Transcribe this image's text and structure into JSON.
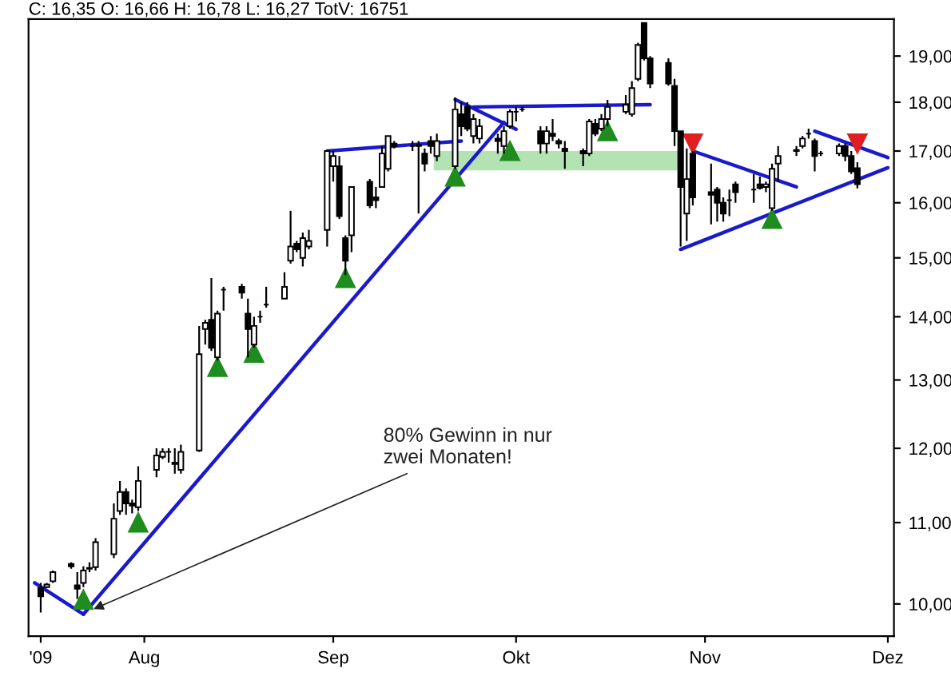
{
  "chart_data": {
    "type": "candlestick",
    "title": "C: 16,35 O: 16,66 H: 16,78 L: 16,27 TotV: 16751",
    "color": "#000000",
    "log": true,
    "x": [
      "2009-07-15",
      "2009-07-16",
      "2009-07-17",
      "2009-07-20",
      "2009-07-21",
      "2009-07-22",
      "2009-07-23",
      "2009-07-24",
      "2009-07-27",
      "2009-07-28",
      "2009-07-29",
      "2009-07-30",
      "2009-07-31",
      "2009-08-03",
      "2009-08-04",
      "2009-08-05",
      "2009-08-06",
      "2009-08-07",
      "2009-08-10",
      "2009-08-11",
      "2009-08-12",
      "2009-08-13",
      "2009-08-14",
      "2009-08-17",
      "2009-08-18",
      "2009-08-19",
      "2009-08-20",
      "2009-08-21",
      "2009-08-24",
      "2009-08-25",
      "2009-08-26",
      "2009-08-27",
      "2009-08-28",
      "2009-08-31",
      "2009-09-01",
      "2009-09-02",
      "2009-09-03",
      "2009-09-04",
      "2009-09-07",
      "2009-09-08",
      "2009-09-09",
      "2009-09-10",
      "2009-09-11",
      "2009-09-14",
      "2009-09-15",
      "2009-09-16",
      "2009-09-17",
      "2009-09-18",
      "2009-09-21",
      "2009-09-22",
      "2009-09-23",
      "2009-09-24",
      "2009-09-25",
      "2009-09-28",
      "2009-09-29",
      "2009-09-30",
      "2009-10-01",
      "2009-10-02",
      "2009-10-05",
      "2009-10-06",
      "2009-10-07",
      "2009-10-08",
      "2009-10-09",
      "2009-10-12",
      "2009-10-13",
      "2009-10-14",
      "2009-10-15",
      "2009-10-16",
      "2009-10-19",
      "2009-10-20",
      "2009-10-21",
      "2009-10-22",
      "2009-10-23",
      "2009-10-26",
      "2009-10-27",
      "2009-10-28",
      "2009-10-29",
      "2009-10-30",
      "2009-11-02",
      "2009-11-03",
      "2009-11-04",
      "2009-11-05",
      "2009-11-06",
      "2009-11-09",
      "2009-11-10",
      "2009-11-11",
      "2009-11-12",
      "2009-11-13",
      "2009-11-16",
      "2009-11-17",
      "2009-11-18",
      "2009-11-19",
      "2009-11-20",
      "2009-11-23",
      "2009-11-24",
      "2009-11-25",
      "2009-11-26"
    ],
    "ohlc": [
      [
        10.19,
        10.25,
        9.9,
        10.09
      ],
      [
        10.2,
        10.25,
        10.19,
        10.23
      ],
      [
        10.27,
        10.4,
        10.25,
        10.38
      ],
      [
        10.48,
        10.5,
        10.42,
        10.45
      ],
      [
        10.22,
        10.38,
        10.06,
        10.18
      ],
      [
        10.25,
        10.45,
        10.2,
        10.4
      ],
      [
        10.42,
        10.5,
        10.38,
        10.43
      ],
      [
        10.44,
        10.8,
        10.4,
        10.75
      ],
      [
        10.6,
        11.25,
        10.55,
        11.05
      ],
      [
        11.15,
        11.55,
        11.1,
        11.4
      ],
      [
        11.4,
        11.45,
        11.1,
        11.25
      ],
      [
        11.25,
        11.3,
        11.12,
        11.22
      ],
      [
        11.2,
        11.75,
        11.15,
        11.55
      ],
      [
        11.7,
        12.0,
        11.6,
        11.9
      ],
      [
        11.88,
        12.0,
        11.85,
        11.95
      ],
      [
        11.95,
        12.0,
        11.8,
        11.95
      ],
      [
        11.8,
        12.0,
        11.65,
        11.78
      ],
      [
        11.7,
        12.05,
        11.65,
        11.95
      ],
      [
        11.97,
        13.85,
        11.95,
        13.4
      ],
      [
        13.8,
        13.95,
        13.55,
        13.9
      ],
      [
        13.95,
        14.65,
        13.45,
        13.5
      ],
      [
        13.35,
        14.1,
        13.3,
        14.05
      ],
      [
        14.45,
        14.5,
        14.1,
        14.45
      ],
      [
        14.5,
        14.55,
        14.3,
        14.4
      ],
      [
        14.05,
        14.3,
        13.35,
        13.8
      ],
      [
        13.55,
        14.0,
        13.5,
        13.85
      ],
      [
        14.0,
        14.1,
        13.9,
        14.0
      ],
      [
        14.2,
        14.5,
        14.15,
        14.2
      ],
      [
        14.3,
        14.75,
        14.3,
        14.5
      ],
      [
        14.95,
        15.85,
        14.9,
        15.2
      ],
      [
        15.25,
        15.3,
        15.1,
        15.15
      ],
      [
        15.0,
        15.45,
        14.85,
        15.35
      ],
      [
        15.2,
        15.5,
        15.15,
        15.3
      ],
      [
        15.5,
        17.0,
        15.2,
        17.0
      ],
      [
        16.7,
        17.0,
        16.4,
        16.9
      ],
      [
        16.7,
        16.9,
        15.7,
        15.75
      ],
      [
        15.35,
        15.4,
        14.7,
        14.95
      ],
      [
        15.4,
        16.3,
        15.1,
        16.3
      ],
      [
        16.4,
        16.45,
        15.9,
        15.95
      ],
      [
        16.1,
        16.3,
        15.9,
        16.05
      ],
      [
        16.3,
        17.1,
        16.3,
        16.95
      ],
      [
        16.65,
        17.3,
        16.6,
        17.3
      ],
      [
        17.15,
        17.2,
        17.05,
        17.1
      ],
      [
        17.1,
        17.2,
        17.0,
        17.1
      ],
      [
        17.1,
        17.2,
        15.8,
        17.12
      ],
      [
        16.95,
        17.05,
        16.6,
        16.75
      ],
      [
        17.2,
        17.3,
        16.95,
        17.1
      ],
      [
        16.9,
        17.35,
        16.8,
        17.2
      ],
      [
        16.7,
        18.1,
        16.65,
        17.85
      ],
      [
        17.75,
        18.0,
        17.3,
        17.5
      ],
      [
        17.9,
        18.0,
        17.4,
        17.45
      ],
      [
        17.3,
        17.75,
        17.15,
        17.65
      ],
      [
        17.25,
        17.65,
        17.15,
        17.5
      ],
      [
        17.25,
        17.35,
        16.95,
        17.2
      ],
      [
        17.1,
        17.5,
        16.95,
        17.4
      ],
      [
        17.5,
        17.85,
        17.45,
        17.8
      ],
      [
        17.8,
        17.9,
        17.6,
        17.8
      ],
      [
        17.85,
        17.9,
        17.8,
        17.85
      ],
      [
        17.4,
        17.5,
        16.95,
        17.15
      ],
      [
        17.15,
        17.5,
        16.95,
        17.4
      ],
      [
        17.35,
        17.65,
        17.2,
        17.3
      ],
      [
        17.2,
        17.25,
        17.05,
        17.15
      ],
      [
        17.05,
        17.2,
        16.65,
        17.0
      ],
      [
        17.0,
        17.05,
        16.7,
        16.95
      ],
      [
        16.95,
        17.65,
        16.9,
        17.6
      ],
      [
        17.55,
        17.65,
        17.3,
        17.35
      ],
      [
        17.45,
        17.75,
        17.4,
        17.65
      ],
      [
        17.65,
        18.05,
        17.5,
        17.9
      ],
      [
        17.8,
        18.15,
        17.75,
        17.95
      ],
      [
        17.75,
        18.45,
        17.7,
        18.3
      ],
      [
        18.5,
        19.3,
        18.45,
        19.25
      ],
      [
        19.75,
        19.75,
        18.9,
        18.95
      ],
      [
        18.95,
        19.0,
        18.3,
        18.4
      ],
      [
        18.85,
        18.95,
        18.35,
        18.4
      ],
      [
        18.35,
        18.5,
        17.1,
        17.4
      ],
      [
        17.4,
        17.4,
        15.2,
        16.3
      ],
      [
        15.8,
        17.05,
        15.3,
        16.45
      ],
      [
        16.95,
        17.0,
        15.95,
        16.1
      ],
      [
        16.2,
        16.75,
        15.6,
        16.15
      ],
      [
        16.25,
        16.3,
        15.65,
        16.0
      ],
      [
        16.0,
        16.1,
        15.65,
        15.8
      ],
      [
        16.05,
        16.25,
        15.75,
        16.05
      ],
      [
        16.35,
        16.4,
        16.0,
        16.2
      ],
      [
        16.25,
        16.55,
        16.0,
        16.25
      ],
      [
        16.35,
        16.5,
        16.25,
        16.28
      ],
      [
        16.3,
        16.4,
        16.2,
        16.35
      ],
      [
        15.9,
        16.75,
        15.85,
        16.65
      ],
      [
        16.75,
        17.1,
        16.4,
        16.9
      ],
      [
        17.0,
        17.1,
        16.9,
        17.02
      ],
      [
        17.1,
        17.3,
        17.05,
        17.25
      ],
      [
        17.35,
        17.45,
        17.25,
        17.35
      ],
      [
        17.2,
        17.25,
        16.6,
        16.9
      ],
      [
        16.95,
        17.0,
        16.9,
        16.95
      ],
      [
        16.95,
        17.15,
        16.9,
        17.1
      ],
      [
        17.1,
        17.15,
        16.8,
        16.9
      ],
      [
        16.9,
        17.0,
        16.55,
        16.6
      ],
      [
        16.66,
        16.78,
        16.27,
        16.35
      ]
    ],
    "series": [
      {
        "type": "bar",
        "color": "#b3e3b3",
        "x": [
          "2009-10-08"
        ],
        "base": [
          16.62
        ],
        "values": [
          0.38
        ]
      },
      {
        "type": "line",
        "color": "#1a1acc",
        "x": [
          "2009-07-14",
          "2009-07-22"
        ],
        "values": [
          10.25,
          9.88
        ]
      },
      {
        "type": "line",
        "color": "#1a1acc",
        "x": [
          "2009-07-22",
          "2009-09-29"
        ],
        "values": [
          9.88,
          17.58
        ]
      },
      {
        "type": "line",
        "color": "#1a1acc",
        "x": [
          "2009-08-31",
          "2009-09-22"
        ],
        "values": [
          17.0,
          17.2
        ]
      },
      {
        "type": "line",
        "color": "#1a1acc",
        "x": [
          "2009-09-21",
          "2009-10-01"
        ],
        "values": [
          18.06,
          17.44
        ]
      },
      {
        "type": "line",
        "color": "#1a1acc",
        "x": [
          "2009-09-24",
          "2009-10-23"
        ],
        "values": [
          17.9,
          17.95
        ]
      },
      {
        "type": "line",
        "color": "#1a1acc",
        "x": [
          "2009-10-30",
          "2009-11-16"
        ],
        "values": [
          17.0,
          16.3
        ]
      },
      {
        "type": "line",
        "color": "#1a1acc",
        "x": [
          "2009-10-28",
          "2009-12-01"
        ],
        "values": [
          15.15,
          16.67
        ]
      },
      {
        "type": "line",
        "color": "#1a1acc",
        "x": [
          "2009-11-19",
          "2009-12-01"
        ],
        "values": [
          17.4,
          16.87
        ]
      },
      {
        "type": "scatter",
        "marker": "triangle",
        "color": "#1e8c1e",
        "x": [
          "2009-07-22",
          "2009-07-31",
          "2009-08-13",
          "2009-08-19",
          "2009-09-03",
          "2009-09-21",
          "2009-09-30",
          "2009-10-16",
          "2009-11-12"
        ],
        "values": [
          10.05,
          11.0,
          13.2,
          13.42,
          14.65,
          16.5,
          17.0,
          17.4,
          15.7
        ]
      },
      {
        "type": "scatter",
        "marker": "triangle",
        "color": "#e02020",
        "x": [
          "2009-10-30",
          "2009-11-26"
        ],
        "values": [
          17.15,
          17.15
        ]
      }
    ],
    "annotations": [
      {
        "text": "80% Gewinn in nur\nzwei Monaten!",
        "x": "2009-07-23",
        "y": 9.92
      }
    ],
    "xlim": [
      "2009-07-13",
      "2009-12-02"
    ],
    "xticks": [
      {
        "value": "2009-07-15",
        "label": "'09"
      },
      {
        "value": "2009-08-01",
        "label": "Aug"
      },
      {
        "value": "2009-09-01",
        "label": "Sep"
      },
      {
        "value": "2009-10-01",
        "label": "Okt"
      },
      {
        "value": "2009-11-01",
        "label": "Nov"
      },
      {
        "value": "2009-12-01",
        "label": "Dez"
      }
    ],
    "ylim": [
      9.63,
      19.84
    ],
    "yticks": [
      {
        "value": 10,
        "label": "10,00"
      },
      {
        "value": 11,
        "label": "11,00"
      },
      {
        "value": 12,
        "label": "12,00"
      },
      {
        "value": 13,
        "label": "13,00"
      },
      {
        "value": 14,
        "label": "14,00"
      },
      {
        "value": 15,
        "label": "15,00"
      },
      {
        "value": 16,
        "label": "16,00"
      },
      {
        "value": 17,
        "label": "17,00"
      },
      {
        "value": 18,
        "label": "18,00"
      },
      {
        "value": 19,
        "label": "19,00"
      }
    ],
    "grid": false,
    "legend": false
  }
}
